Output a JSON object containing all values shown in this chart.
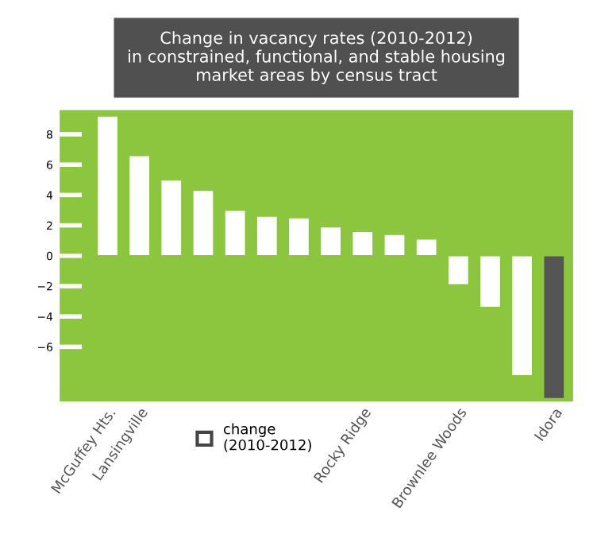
{
  "chart_data": {
    "type": "bar",
    "title": "Change in vacancy rates (2010-2012)\nin constrained, functional, and stable housing\nmarket areas by census tract",
    "categories": [
      "McGuffey Hts.",
      "Lansingville",
      null,
      null,
      null,
      null,
      null,
      null,
      "Rocky Ridge",
      null,
      null,
      "Brownlee Woods",
      null,
      null,
      "Idora"
    ],
    "series": [
      {
        "name": "change\n(2010-2012)",
        "color": "#ffffff",
        "colors": [
          "#ffffff",
          "#ffffff",
          "#ffffff",
          "#ffffff",
          "#ffffff",
          "#ffffff",
          "#ffffff",
          "#ffffff",
          "#ffffff",
          "#ffffff",
          "#ffffff",
          "#ffffff",
          "#ffffff",
          "#ffffff",
          "#555555"
        ],
        "values": [
          9.2,
          6.6,
          5.0,
          4.3,
          3.0,
          2.6,
          2.5,
          1.9,
          1.6,
          1.4,
          1.1,
          -1.9,
          -3.4,
          -7.9,
          -9.4
        ]
      }
    ],
    "ylim": [
      -9.6,
      9.6
    ],
    "yticks": [
      {
        "value": -6,
        "label": "−6"
      },
      {
        "value": -4,
        "label": "−4"
      },
      {
        "value": -2,
        "label": "−2"
      },
      {
        "value": 0,
        "label": "0"
      },
      {
        "value": 2,
        "label": "2"
      },
      {
        "value": 4,
        "label": "4"
      },
      {
        "value": 6,
        "label": "6"
      },
      {
        "value": 8,
        "label": "8"
      }
    ],
    "grid": false,
    "legend": "bottom"
  }
}
